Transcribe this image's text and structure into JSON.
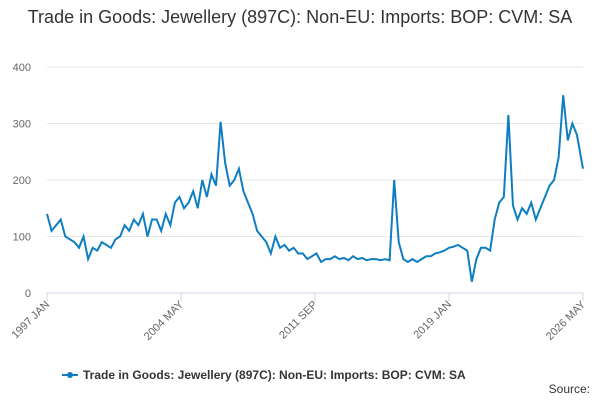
{
  "chart_data": {
    "type": "line",
    "title": "Trade in Goods: Jewellery (897C): Non-EU: Imports: BOP: CVM: SA",
    "source": "Source:",
    "x": [
      0,
      3,
      6,
      9,
      12,
      15,
      18,
      21,
      24,
      27,
      30,
      33,
      36,
      39,
      42,
      45,
      48,
      51,
      54,
      57,
      60,
      63,
      66,
      69,
      72,
      75,
      78,
      81,
      84,
      87,
      90,
      93,
      96,
      99,
      102,
      105,
      108,
      111,
      114,
      117,
      120,
      123,
      126,
      129,
      132,
      135,
      138,
      141,
      144,
      147,
      150,
      153,
      156,
      159,
      162,
      165,
      168,
      171,
      174,
      177,
      180,
      183,
      186,
      189,
      192,
      195,
      198,
      201,
      204,
      207,
      210,
      213,
      216,
      219,
      222,
      225,
      228,
      231,
      234,
      237,
      240,
      243,
      246,
      249,
      252,
      255,
      258,
      261,
      264,
      267,
      270,
      273,
      276,
      279,
      282,
      285,
      288,
      291,
      294,
      297,
      300,
      303,
      306,
      309,
      312,
      315,
      318,
      321,
      324,
      327,
      330,
      333,
      336,
      339,
      342,
      345,
      348,
      352
    ],
    "xlim": [
      0,
      352
    ],
    "xticks": [
      {
        "value": 0,
        "label": "1997 JAN"
      },
      {
        "value": 88,
        "label": "2004 MAY"
      },
      {
        "value": 176,
        "label": "2011 SEP"
      },
      {
        "value": 264,
        "label": "2019 JAN"
      },
      {
        "value": 352,
        "label": "2026 MAY"
      }
    ],
    "ylim": [
      0,
      400
    ],
    "yticks": [
      0,
      100,
      200,
      300,
      400
    ],
    "grid": true,
    "series": [
      {
        "name": "Trade in Goods: Jewellery (897C): Non-EU: Imports: BOP: CVM: SA",
        "color": "#0f7ec1",
        "values": [
          140,
          110,
          120,
          130,
          100,
          95,
          90,
          80,
          100,
          60,
          80,
          75,
          90,
          85,
          80,
          95,
          100,
          120,
          110,
          130,
          120,
          140,
          100,
          130,
          130,
          110,
          140,
          120,
          160,
          170,
          150,
          160,
          180,
          150,
          200,
          170,
          210,
          190,
          303,
          230,
          190,
          200,
          220,
          180,
          160,
          140,
          110,
          100,
          90,
          70,
          100,
          80,
          85,
          75,
          80,
          70,
          70,
          60,
          65,
          70,
          55,
          60,
          60,
          65,
          60,
          62,
          58,
          65,
          60,
          62,
          58,
          60,
          60,
          58,
          60,
          58,
          200,
          90,
          60,
          55,
          60,
          55,
          60,
          65,
          65,
          70,
          72,
          75,
          80,
          82,
          85,
          80,
          75,
          20,
          60,
          80,
          80,
          75,
          130,
          160,
          170,
          315,
          155,
          130,
          150,
          140,
          160,
          130,
          150,
          170,
          190,
          200,
          240,
          350,
          270,
          300,
          280,
          220
        ]
      }
    ]
  }
}
